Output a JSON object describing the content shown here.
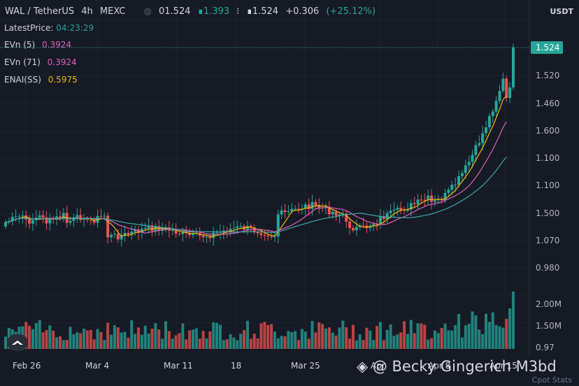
{
  "header": {
    "symbol": "WAL / TetherUS",
    "interval": "4h",
    "exchange": "MEXC",
    "open": "01.524",
    "high": "∎1.393",
    "low": "∎1.524",
    "change": "+0.306",
    "change_pct": "(+25.12%)"
  },
  "legend": {
    "latest_label": "LatestPrice:",
    "latest_value": "04:23:29",
    "ma1_label": "EVn (5)",
    "ma1_value": "0.3924",
    "ma2_label": "EVn (71)",
    "ma2_value": "0.3924",
    "ma3_label": "ENAI(SS)",
    "ma3_value": "0.5975"
  },
  "axis_unit": "USDT",
  "bottom_right": "Cpot Stats",
  "watermark": "@ Becky Gingerich M3bd",
  "colors": {
    "up": "#26a69a",
    "down": "#ef5350",
    "ma_fast": "#f0b90b",
    "ma_mid": "#d863b7",
    "ma_slow": "#3fa6a8",
    "price_tag": "#26a69a"
  },
  "chart_data": {
    "type": "candlestick",
    "price_axis_labels": [
      "1.520",
      "1.460",
      "1.600",
      "1.100",
      "1.100",
      "1.500",
      "1.070",
      "0.980"
    ],
    "last_price_label": "1.524",
    "volume_axis_labels": [
      "2.00M",
      "1.50M",
      "0.97"
    ],
    "x_tick_labels": [
      "Feb 26",
      "Mar 4",
      "Mar 11",
      "18",
      "Mar 25",
      "Apr",
      "Apr 8",
      "Apr 15"
    ],
    "grid": true,
    "series": [
      {
        "name": "EVn (5)",
        "type": "line"
      },
      {
        "name": "EVn (71)",
        "type": "line"
      },
      {
        "name": "ENAI(SS)",
        "type": "line"
      }
    ],
    "volume": true
  }
}
